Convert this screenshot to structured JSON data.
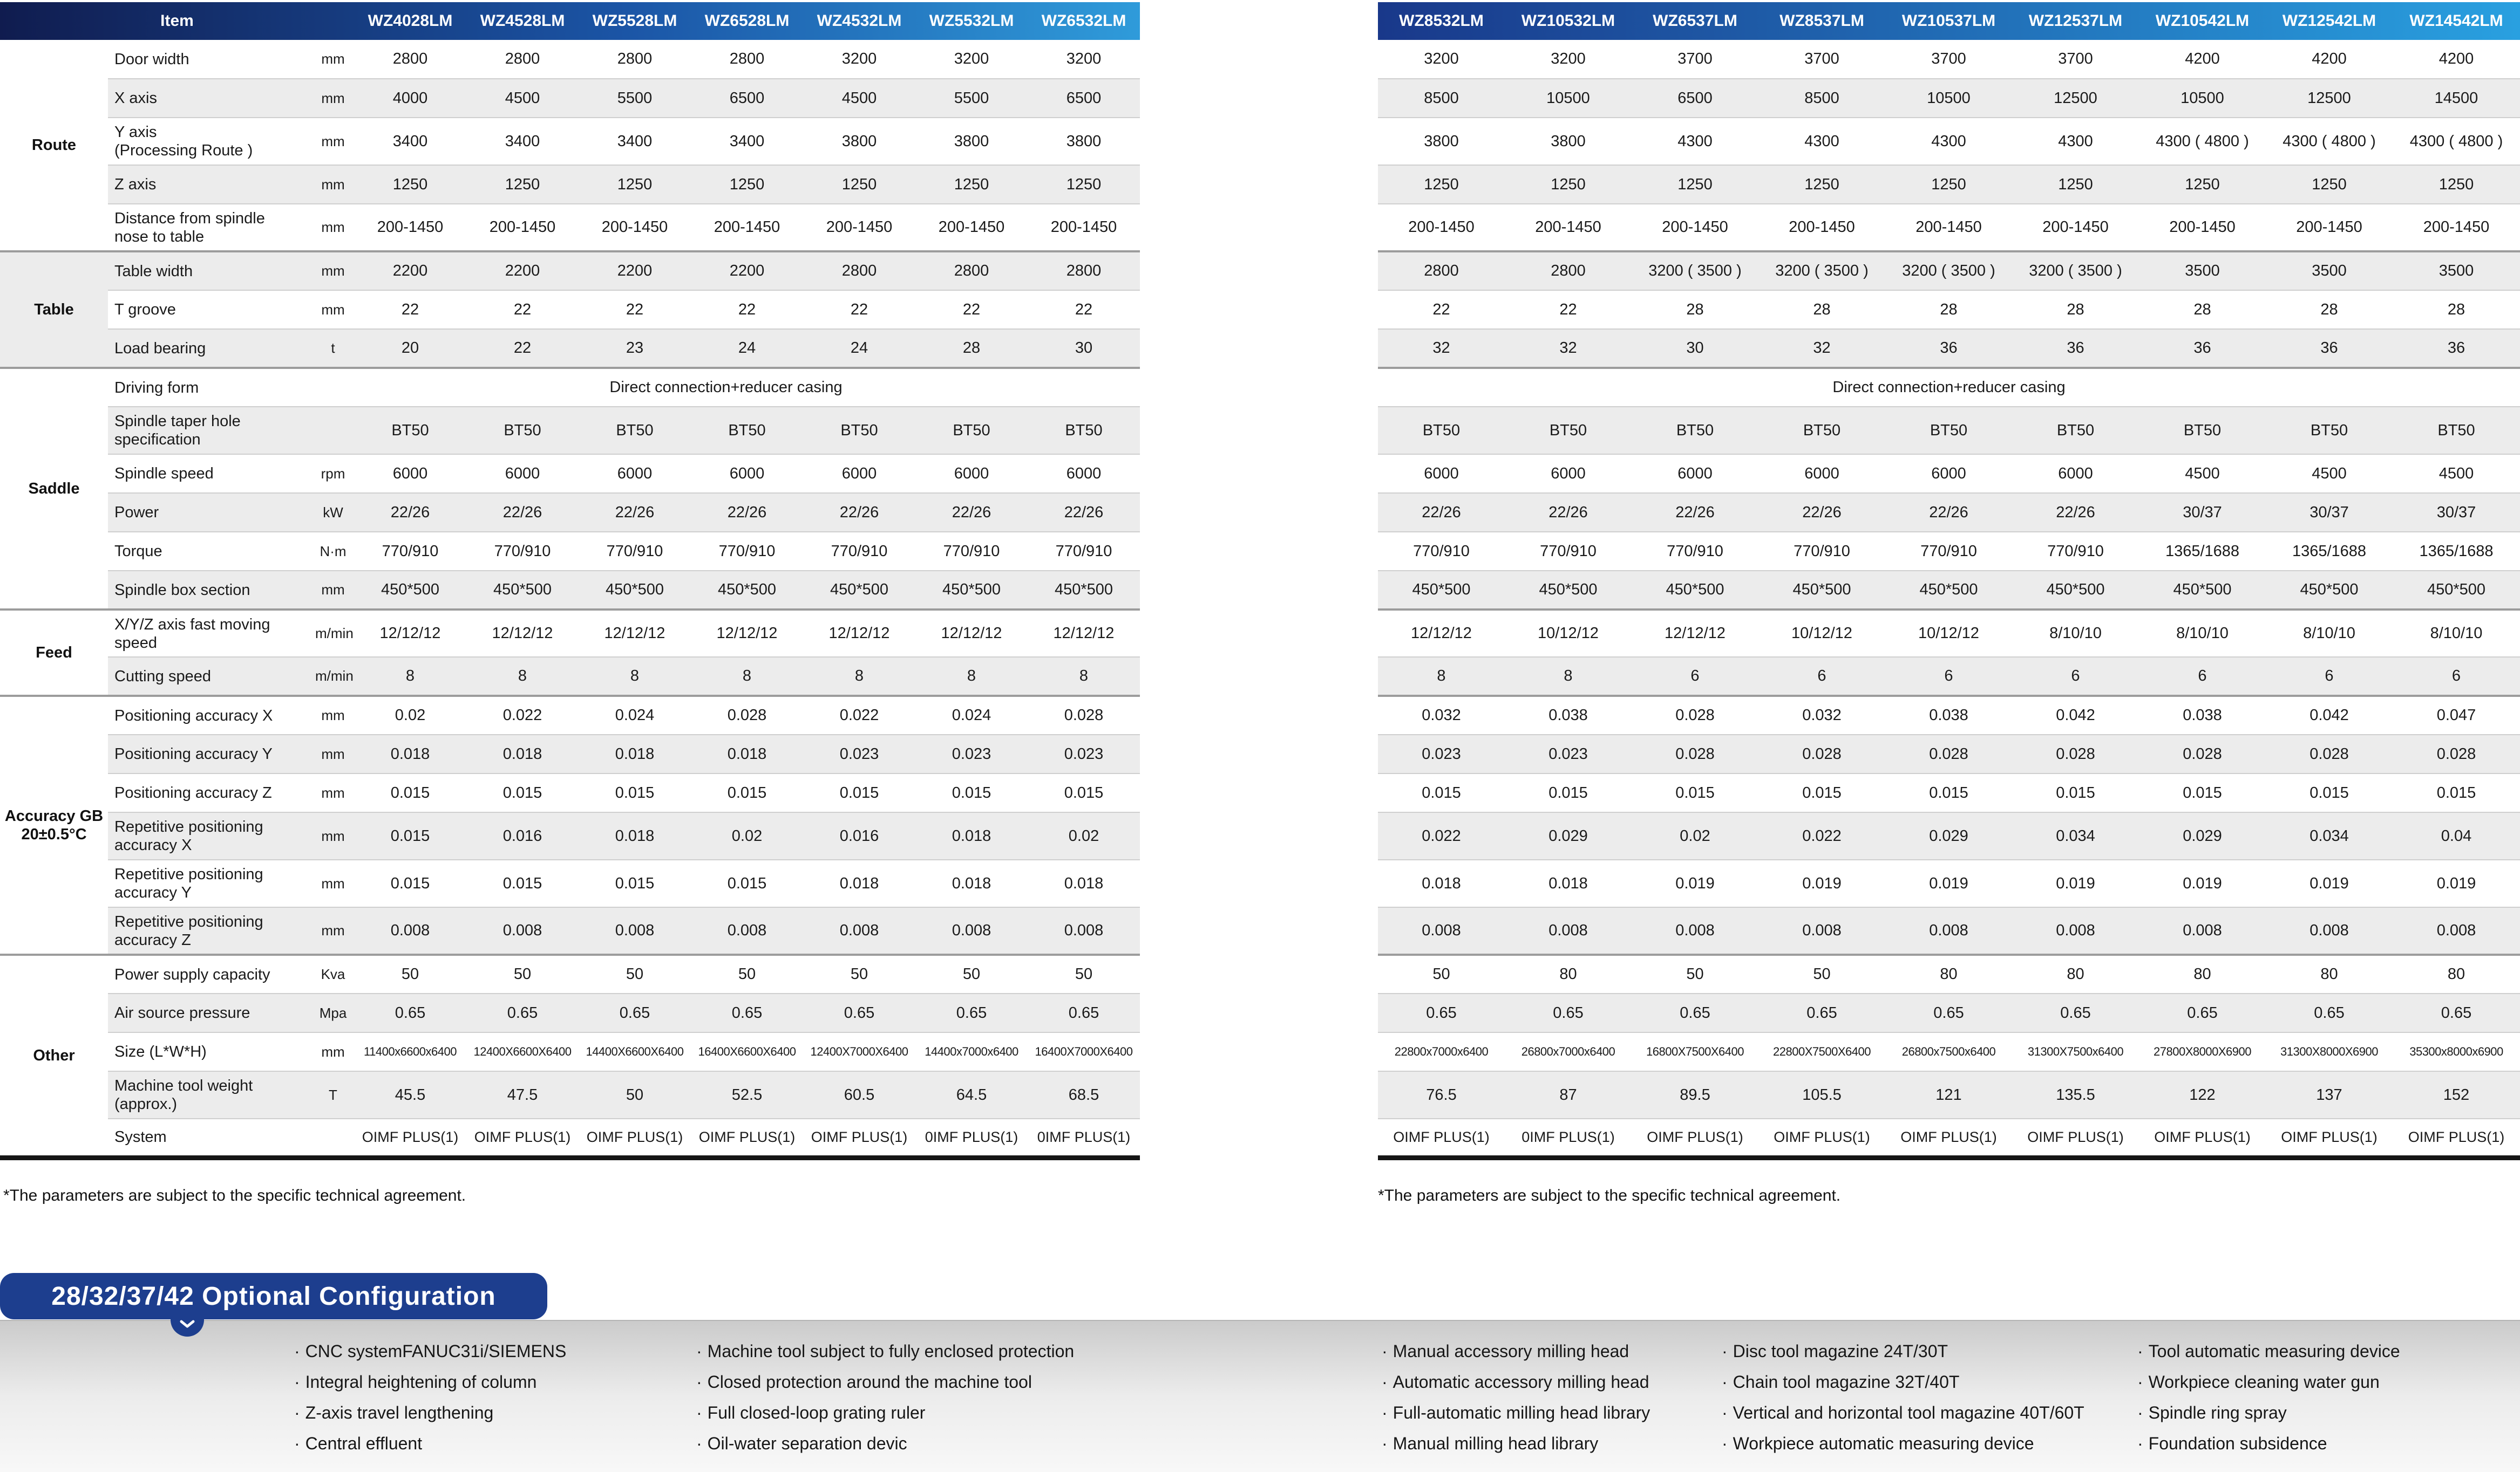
{
  "page": {
    "footnote": "*The parameters are subject to the specific technical agreement."
  },
  "left_table": {
    "item_header": "Item",
    "models": [
      "WZ4028LM",
      "WZ4528LM",
      "WZ5528LM",
      "WZ6528LM",
      "WZ4532LM",
      "WZ5532LM",
      "WZ6532LM"
    ]
  },
  "right_table": {
    "models": [
      "WZ8532LM",
      "WZ10532LM",
      "WZ6537LM",
      "WZ8537LM",
      "WZ10537LM",
      "WZ12537LM",
      "WZ10542LM",
      "WZ12542LM",
      "WZ14542LM"
    ]
  },
  "spec_rows": [
    {
      "group": "Route",
      "group_span": 5,
      "item": "Door width",
      "unit": "mm",
      "left": [
        "2800",
        "2800",
        "2800",
        "2800",
        "3200",
        "3200",
        "3200"
      ],
      "right": [
        "3200",
        "3200",
        "3700",
        "3700",
        "3700",
        "3700",
        "4200",
        "4200",
        "4200"
      ]
    },
    {
      "item": "X axis",
      "unit": "mm",
      "left": [
        "4000",
        "4500",
        "5500",
        "6500",
        "4500",
        "5500",
        "6500"
      ],
      "right": [
        "8500",
        "10500",
        "6500",
        "8500",
        "10500",
        "12500",
        "10500",
        "12500",
        "14500"
      ]
    },
    {
      "item": "Y axis\n(Processing Route )",
      "unit": "mm",
      "tall": true,
      "left": [
        "3400",
        "3400",
        "3400",
        "3400",
        "3800",
        "3800",
        "3800"
      ],
      "right": [
        "3800",
        "3800",
        "4300",
        "4300",
        "4300",
        "4300",
        "4300 ( 4800 )",
        "4300 ( 4800 )",
        "4300 ( 4800 )"
      ]
    },
    {
      "item": "Z axis",
      "unit": "mm",
      "left": [
        "1250",
        "1250",
        "1250",
        "1250",
        "1250",
        "1250",
        "1250"
      ],
      "right": [
        "1250",
        "1250",
        "1250",
        "1250",
        "1250",
        "1250",
        "1250",
        "1250",
        "1250"
      ]
    },
    {
      "item": "Distance from spindle\nnose to table",
      "unit": "mm",
      "tall": true,
      "left": [
        "200-1450",
        "200-1450",
        "200-1450",
        "200-1450",
        "200-1450",
        "200-1450",
        "200-1450"
      ],
      "right": [
        "200-1450",
        "200-1450",
        "200-1450",
        "200-1450",
        "200-1450",
        "200-1450",
        "200-1450",
        "200-1450",
        "200-1450"
      ]
    },
    {
      "group": "Table",
      "group_span": 3,
      "item": "Table width",
      "unit": "mm",
      "left": [
        "2200",
        "2200",
        "2200",
        "2200",
        "2800",
        "2800",
        "2800"
      ],
      "right": [
        "2800",
        "2800",
        "3200 ( 3500 )",
        "3200 ( 3500 )",
        "3200 ( 3500 )",
        "3200 ( 3500 )",
        "3500",
        "3500",
        "3500"
      ]
    },
    {
      "item": "T groove",
      "unit": "mm",
      "left": [
        "22",
        "22",
        "22",
        "22",
        "22",
        "22",
        "22"
      ],
      "right": [
        "22",
        "22",
        "28",
        "28",
        "28",
        "28",
        "28",
        "28",
        "28"
      ]
    },
    {
      "item": "Load bearing",
      "unit": "t",
      "left": [
        "20",
        "22",
        "23",
        "24",
        "24",
        "28",
        "30"
      ],
      "right": [
        "32",
        "32",
        "30",
        "32",
        "36",
        "36",
        "36",
        "36",
        "36"
      ]
    },
    {
      "group": "Saddle",
      "group_span": 6,
      "item": "Driving form",
      "unit": "",
      "merged": "Direct connection+reducer casing"
    },
    {
      "item": "Spindle taper hole\nspecification",
      "unit": "",
      "tall": true,
      "left": [
        "BT50",
        "BT50",
        "BT50",
        "BT50",
        "BT50",
        "BT50",
        "BT50"
      ],
      "right": [
        "BT50",
        "BT50",
        "BT50",
        "BT50",
        "BT50",
        "BT50",
        "BT50",
        "BT50",
        "BT50"
      ]
    },
    {
      "item": "Spindle speed",
      "unit": "rpm",
      "left": [
        "6000",
        "6000",
        "6000",
        "6000",
        "6000",
        "6000",
        "6000"
      ],
      "right": [
        "6000",
        "6000",
        "6000",
        "6000",
        "6000",
        "6000",
        "4500",
        "4500",
        "4500"
      ]
    },
    {
      "item": "Power",
      "unit": "kW",
      "left": [
        "22/26",
        "22/26",
        "22/26",
        "22/26",
        "22/26",
        "22/26",
        "22/26"
      ],
      "right": [
        "22/26",
        "22/26",
        "22/26",
        "22/26",
        "22/26",
        "22/26",
        "30/37",
        "30/37",
        "30/37"
      ]
    },
    {
      "item": "Torque",
      "unit": "N·m",
      "left": [
        "770/910",
        "770/910",
        "770/910",
        "770/910",
        "770/910",
        "770/910",
        "770/910"
      ],
      "right": [
        "770/910",
        "770/910",
        "770/910",
        "770/910",
        "770/910",
        "770/910",
        "1365/1688",
        "1365/1688",
        "1365/1688"
      ]
    },
    {
      "item": "Spindle box section",
      "unit": "mm",
      "left": [
        "450*500",
        "450*500",
        "450*500",
        "450*500",
        "450*500",
        "450*500",
        "450*500"
      ],
      "right": [
        "450*500",
        "450*500",
        "450*500",
        "450*500",
        "450*500",
        "450*500",
        "450*500",
        "450*500",
        "450*500"
      ]
    },
    {
      "group": "Feed",
      "group_span": 2,
      "item": "X/Y/Z axis fast moving\nspeed",
      "unit": "m/min",
      "tall": true,
      "left": [
        "12/12/12",
        "12/12/12",
        "12/12/12",
        "12/12/12",
        "12/12/12",
        "12/12/12",
        "12/12/12"
      ],
      "right": [
        "12/12/12",
        "10/12/12",
        "12/12/12",
        "10/12/12",
        "10/12/12",
        "8/10/10",
        "8/10/10",
        "8/10/10",
        "8/10/10"
      ]
    },
    {
      "item": "Cutting speed",
      "unit": "m/min",
      "left": [
        "8",
        "8",
        "8",
        "8",
        "8",
        "8",
        "8"
      ],
      "right": [
        "8",
        "8",
        "6",
        "6",
        "6",
        "6",
        "6",
        "6",
        "6"
      ]
    },
    {
      "group": "Accuracy GB\n20±0.5°C",
      "group_span": 6,
      "item": "Positioning accuracy X",
      "unit": "mm",
      "left": [
        "0.02",
        "0.022",
        "0.024",
        "0.028",
        "0.022",
        "0.024",
        "0.028"
      ],
      "right": [
        "0.032",
        "0.038",
        "0.028",
        "0.032",
        "0.038",
        "0.042",
        "0.038",
        "0.042",
        "0.047"
      ]
    },
    {
      "item": "Positioning accuracy Y",
      "unit": "mm",
      "left": [
        "0.018",
        "0.018",
        "0.018",
        "0.018",
        "0.023",
        "0.023",
        "0.023"
      ],
      "right": [
        "0.023",
        "0.023",
        "0.028",
        "0.028",
        "0.028",
        "0.028",
        "0.028",
        "0.028",
        "0.028"
      ]
    },
    {
      "item": "Positioning accuracy Z",
      "unit": "mm",
      "left": [
        "0.015",
        "0.015",
        "0.015",
        "0.015",
        "0.015",
        "0.015",
        "0.015"
      ],
      "right": [
        "0.015",
        "0.015",
        "0.015",
        "0.015",
        "0.015",
        "0.015",
        "0.015",
        "0.015",
        "0.015"
      ]
    },
    {
      "item": "Repetitive positioning\naccuracy X",
      "unit": "mm",
      "tall": true,
      "left": [
        "0.015",
        "0.016",
        "0.018",
        "0.02",
        "0.016",
        "0.018",
        "0.02"
      ],
      "right": [
        "0.022",
        "0.029",
        "0.02",
        "0.022",
        "0.029",
        "0.034",
        "0.029",
        "0.034",
        "0.04"
      ]
    },
    {
      "item": "Repetitive positioning\naccuracy Y",
      "unit": "mm",
      "tall": true,
      "left": [
        "0.015",
        "0.015",
        "0.015",
        "0.015",
        "0.018",
        "0.018",
        "0.018"
      ],
      "right": [
        "0.018",
        "0.018",
        "0.019",
        "0.019",
        "0.019",
        "0.019",
        "0.019",
        "0.019",
        "0.019"
      ]
    },
    {
      "item": "Repetitive positioning\naccuracy Z",
      "unit": "mm",
      "tall": true,
      "left": [
        "0.008",
        "0.008",
        "0.008",
        "0.008",
        "0.008",
        "0.008",
        "0.008"
      ],
      "right": [
        "0.008",
        "0.008",
        "0.008",
        "0.008",
        "0.008",
        "0.008",
        "0.008",
        "0.008",
        "0.008"
      ]
    },
    {
      "group": "Other",
      "group_span": 5,
      "item": "Power supply capacity",
      "unit": "Kva",
      "left": [
        "50",
        "50",
        "50",
        "50",
        "50",
        "50",
        "50"
      ],
      "right": [
        "50",
        "80",
        "50",
        "50",
        "80",
        "80",
        "80",
        "80",
        "80"
      ]
    },
    {
      "item": "Air source pressure",
      "unit": "Mpa",
      "left": [
        "0.65",
        "0.65",
        "0.65",
        "0.65",
        "0.65",
        "0.65",
        "0.65"
      ],
      "right": [
        "0.65",
        "0.65",
        "0.65",
        "0.65",
        "0.65",
        "0.65",
        "0.65",
        "0.65",
        "0.65"
      ]
    },
    {
      "item": "Size (L*W*H)",
      "unit": "mm",
      "small": true,
      "left": [
        "11400x6600x6400",
        "12400X6600X6400",
        "14400X6600X6400",
        "16400X6600X6400",
        "12400X7000X6400",
        "14400x7000x6400",
        "16400X7000X6400"
      ],
      "right": [
        "22800x7000x6400",
        "26800x7000x6400",
        "16800X7500X6400",
        "22800X7500X6400",
        "26800x7500x6400",
        "31300X7500x6400",
        "27800X8000X6900",
        "31300X8000X6900",
        "35300x8000x6900"
      ]
    },
    {
      "item": "Machine tool weight\n(approx.)",
      "unit": "T",
      "tall": true,
      "left": [
        "45.5",
        "47.5",
        "50",
        "52.5",
        "60.5",
        "64.5",
        "68.5"
      ],
      "right": [
        "76.5",
        "87",
        "89.5",
        "105.5",
        "121",
        "135.5",
        "122",
        "137",
        "152"
      ]
    },
    {
      "item": "System",
      "unit": "",
      "sys": true,
      "left": [
        "OIMF PLUS(1)",
        "OIMF PLUS(1)",
        "OIMF PLUS(1)",
        "OIMF PLUS(1)",
        "OIMF PLUS(1)",
        "0IMF PLUS(1)",
        "0IMF PLUS(1)"
      ],
      "right": [
        "OIMF PLUS(1)",
        "0IMF PLUS(1)",
        "OIMF PLUS(1)",
        "OIMF PLUS(1)",
        "OIMF PLUS(1)",
        "OIMF PLUS(1)",
        "OIMF PLUS(1)",
        "OIMF PLUS(1)",
        "OIMF PLUS(1)"
      ]
    }
  ],
  "optional": {
    "banner": "28/32/37/42 Optional Configuration",
    "bullet": "·",
    "columns": [
      [
        "CNC systemFANUC31i/SIEMENS",
        "Integral heightening of column",
        "Z-axis travel lengthening",
        "Central effluent"
      ],
      [
        "Machine tool subject to fully enclosed protection",
        "Closed protection around the machine tool",
        "Full closed-loop grating ruler",
        "Oil-water separation devic"
      ],
      [
        "Manual accessory milling head",
        "Automatic accessory milling head",
        "Full-automatic milling head library",
        "Manual milling head library"
      ],
      [
        "Disc tool magazine 24T/30T",
        "Chain tool magazine 32T/40T",
        "Vertical and horizontal tool magazine 40T/60T",
        "Workpiece automatic measuring device"
      ],
      [
        "Tool automatic measuring device",
        "Workpiece cleaning water gun",
        "Spindle ring spray",
        "Foundation subsidence"
      ]
    ]
  },
  "colors": {
    "header_gradient_left": [
      "#101c4f",
      "#1b55a6",
      "#2f9bda"
    ],
    "header_gradient_right": [
      "#19388a",
      "#29a0e0"
    ],
    "banner_blue": "#1d3e8e",
    "stripe": "#ececec",
    "band_top": "#cbcbcb",
    "band_mid": "#ececec",
    "band_bottom": "#f8f8f8"
  }
}
